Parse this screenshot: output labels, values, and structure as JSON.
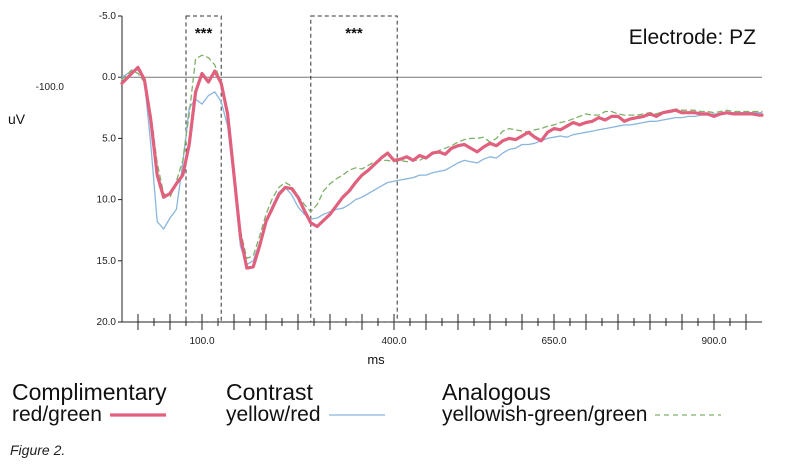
{
  "chart_data": {
    "type": "line",
    "title": "",
    "annotation": "Electrode: PZ",
    "xlabel": "ms",
    "ylabel": "uV",
    "xlim": [
      -25,
      975
    ],
    "ylim": [
      -5.0,
      20.0
    ],
    "y_inverted": true,
    "x_ticks": [
      100,
      400,
      650,
      900
    ],
    "x_tick_labels": [
      "100.0",
      "400.0",
      "650.0",
      "900.0"
    ],
    "y_ticks": [
      -5.0,
      0.0,
      5.0,
      10.0,
      15.0,
      20.0
    ],
    "y_tick_labels": [
      "-5.0",
      "0.0",
      "5.0",
      "10.0",
      "15.0",
      "20.0"
    ],
    "extra_y_label": "-100.0",
    "grid": false,
    "significance_windows": [
      {
        "x_start": 75,
        "x_end": 130,
        "label": "***"
      },
      {
        "x_start": 270,
        "x_end": 405,
        "label": "***"
      }
    ],
    "x": [
      -25,
      -10,
      0,
      10,
      20,
      30,
      40,
      50,
      60,
      70,
      80,
      90,
      100,
      110,
      120,
      130,
      140,
      150,
      160,
      170,
      180,
      190,
      200,
      210,
      220,
      230,
      240,
      250,
      260,
      270,
      280,
      290,
      300,
      310,
      320,
      330,
      340,
      350,
      360,
      370,
      380,
      390,
      400,
      410,
      420,
      430,
      440,
      450,
      460,
      470,
      480,
      490,
      500,
      510,
      520,
      530,
      540,
      550,
      560,
      570,
      580,
      590,
      600,
      610,
      620,
      630,
      640,
      650,
      660,
      670,
      680,
      690,
      700,
      710,
      720,
      730,
      740,
      750,
      760,
      770,
      780,
      790,
      800,
      810,
      820,
      830,
      840,
      850,
      860,
      870,
      880,
      890,
      900,
      910,
      920,
      930,
      940,
      950,
      960,
      970,
      975
    ],
    "series": [
      {
        "name": "red/green",
        "group": "Complimentary",
        "color": "#e0607e",
        "style": "thick",
        "values": [
          0.5,
          -0.3,
          -0.8,
          0.2,
          3.5,
          8.0,
          9.8,
          9.5,
          8.7,
          8.0,
          5.5,
          1.2,
          -0.3,
          0.4,
          -0.5,
          0.5,
          3.0,
          8.0,
          13.0,
          15.6,
          15.5,
          13.8,
          11.8,
          10.7,
          9.6,
          9.0,
          9.1,
          9.8,
          10.9,
          11.9,
          12.2,
          11.7,
          11.2,
          10.5,
          9.8,
          9.3,
          8.6,
          8.0,
          7.6,
          7.1,
          6.6,
          6.2,
          6.8,
          6.7,
          6.5,
          6.8,
          6.4,
          6.6,
          6.2,
          6.1,
          6.3,
          5.8,
          5.6,
          5.5,
          5.8,
          6.1,
          5.7,
          5.4,
          5.6,
          5.2,
          5.0,
          5.1,
          4.8,
          4.5,
          4.9,
          5.2,
          4.5,
          4.2,
          4.3,
          4.0,
          3.7,
          3.9,
          3.7,
          3.6,
          3.3,
          3.5,
          3.2,
          3.2,
          3.6,
          3.4,
          3.3,
          3.2,
          3.0,
          3.2,
          2.9,
          2.8,
          2.7,
          2.9,
          2.9,
          2.9,
          3.0,
          3.0,
          3.2,
          3.0,
          2.9,
          3.0,
          3.0,
          3.0,
          3.0,
          3.1,
          3.1
        ]
      },
      {
        "name": "yellow/red",
        "group": "Contrast",
        "color": "#8ab6de",
        "style": "thin",
        "values": [
          0.0,
          -0.5,
          -0.6,
          0.3,
          5.5,
          11.8,
          12.4,
          11.5,
          10.8,
          7.0,
          2.5,
          1.8,
          2.2,
          1.5,
          1.2,
          2.0,
          4.0,
          8.5,
          13.8,
          15.3,
          15.0,
          13.5,
          11.8,
          10.5,
          9.4,
          9.0,
          9.6,
          10.6,
          11.2,
          11.6,
          11.5,
          11.2,
          11.0,
          10.8,
          10.7,
          10.4,
          10.0,
          9.8,
          9.5,
          9.2,
          8.9,
          8.6,
          8.5,
          8.4,
          8.3,
          8.2,
          8.0,
          8.0,
          7.8,
          7.7,
          7.6,
          7.3,
          7.0,
          6.8,
          6.9,
          7.0,
          6.7,
          6.5,
          6.6,
          6.2,
          5.9,
          5.8,
          5.5,
          5.5,
          5.4,
          5.2,
          5.0,
          4.9,
          4.8,
          4.9,
          4.7,
          4.6,
          4.5,
          4.4,
          4.3,
          4.2,
          4.1,
          4.0,
          3.9,
          3.9,
          3.8,
          3.7,
          3.6,
          3.6,
          3.5,
          3.4,
          3.3,
          3.3,
          3.2,
          3.2,
          3.1,
          3.1,
          3.0,
          3.0,
          3.0,
          2.9,
          2.9,
          2.9,
          2.9,
          2.9,
          2.9
        ]
      },
      {
        "name": "yellowish-green/green",
        "group": "Analogous",
        "color": "#7fb069",
        "style": "dashed",
        "values": [
          0.2,
          -0.6,
          -0.3,
          0.4,
          3.0,
          7.0,
          9.5,
          9.8,
          8.5,
          6.8,
          3.0,
          -1.5,
          -1.8,
          -1.6,
          -1.0,
          0.5,
          3.0,
          7.5,
          12.5,
          14.8,
          14.6,
          13.0,
          11.2,
          9.9,
          9.0,
          8.6,
          8.9,
          9.7,
          10.4,
          11.0,
          10.4,
          9.3,
          8.7,
          8.3,
          8.0,
          7.6,
          7.4,
          7.5,
          7.2,
          6.9,
          6.8,
          6.8,
          6.9,
          6.8,
          6.9,
          6.8,
          6.8,
          6.5,
          6.3,
          6.0,
          5.8,
          5.6,
          5.3,
          5.1,
          5.0,
          5.0,
          4.9,
          5.3,
          5.0,
          4.4,
          4.2,
          4.3,
          4.4,
          4.5,
          4.3,
          4.2,
          4.0,
          3.9,
          3.7,
          3.6,
          3.4,
          3.2,
          3.0,
          3.1,
          3.1,
          2.8,
          2.8,
          3.0,
          3.1,
          3.1,
          3.1,
          3.0,
          2.9,
          3.0,
          2.8,
          2.8,
          2.6,
          2.7,
          2.7,
          2.7,
          2.8,
          2.8,
          2.9,
          2.8,
          2.7,
          2.8,
          2.8,
          2.8,
          2.8,
          2.8,
          2.8
        ]
      }
    ],
    "legend_placement": "bottom"
  },
  "legend": [
    {
      "group": "Complimentary",
      "name": "red/green"
    },
    {
      "group": "Contrast",
      "name": "yellow/red"
    },
    {
      "group": "Analogous",
      "name": "yellowish-green/green"
    }
  ],
  "caption": "Figure 2."
}
